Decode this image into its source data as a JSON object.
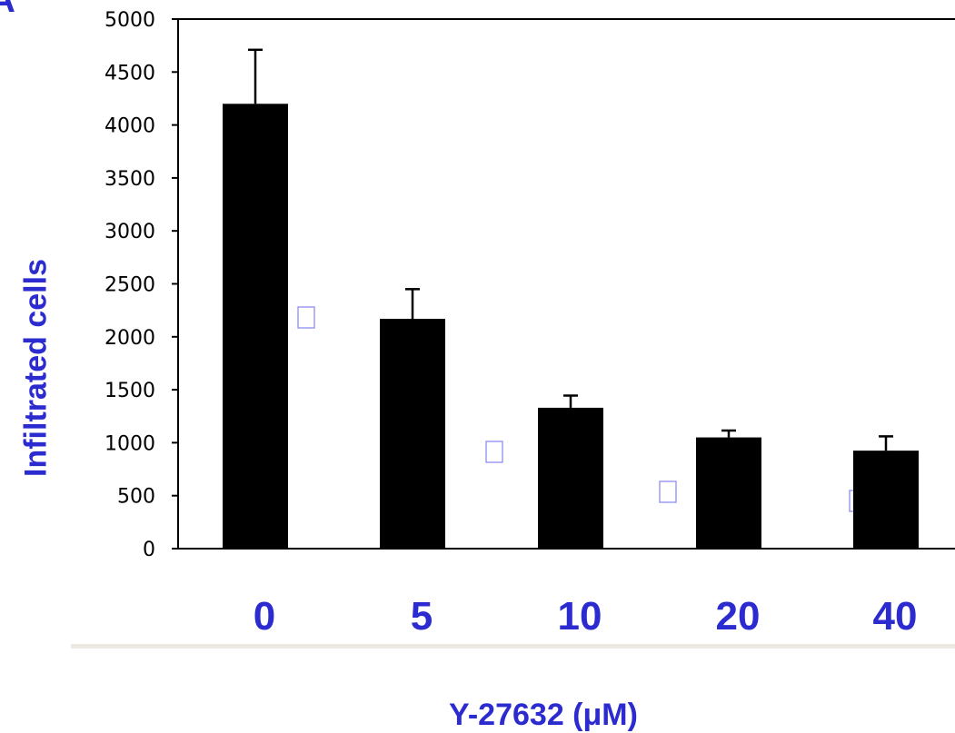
{
  "panel_label": "A",
  "colors": {
    "bar": "#000000",
    "axis": "#000000",
    "label_blue": "#2b2bd0",
    "marker": "#8c8cf0",
    "rule": "#ede9e3"
  },
  "chart_data": {
    "type": "bar",
    "title": "",
    "xlabel": "Y-27632 (μM)",
    "ylabel": "Infiltrated cells",
    "categories": [
      "0",
      "5",
      "10",
      "20",
      "40"
    ],
    "values": [
      4200,
      2170,
      1330,
      1050,
      925
    ],
    "error": [
      510,
      280,
      115,
      65,
      135
    ],
    "ylim": [
      0,
      5000
    ],
    "yticks": [
      "0",
      "500",
      "1000",
      "1500",
      "2000",
      "2500",
      "3000",
      "3500",
      "4000",
      "4500",
      "5000"
    ],
    "grid": false,
    "legend": "none"
  }
}
